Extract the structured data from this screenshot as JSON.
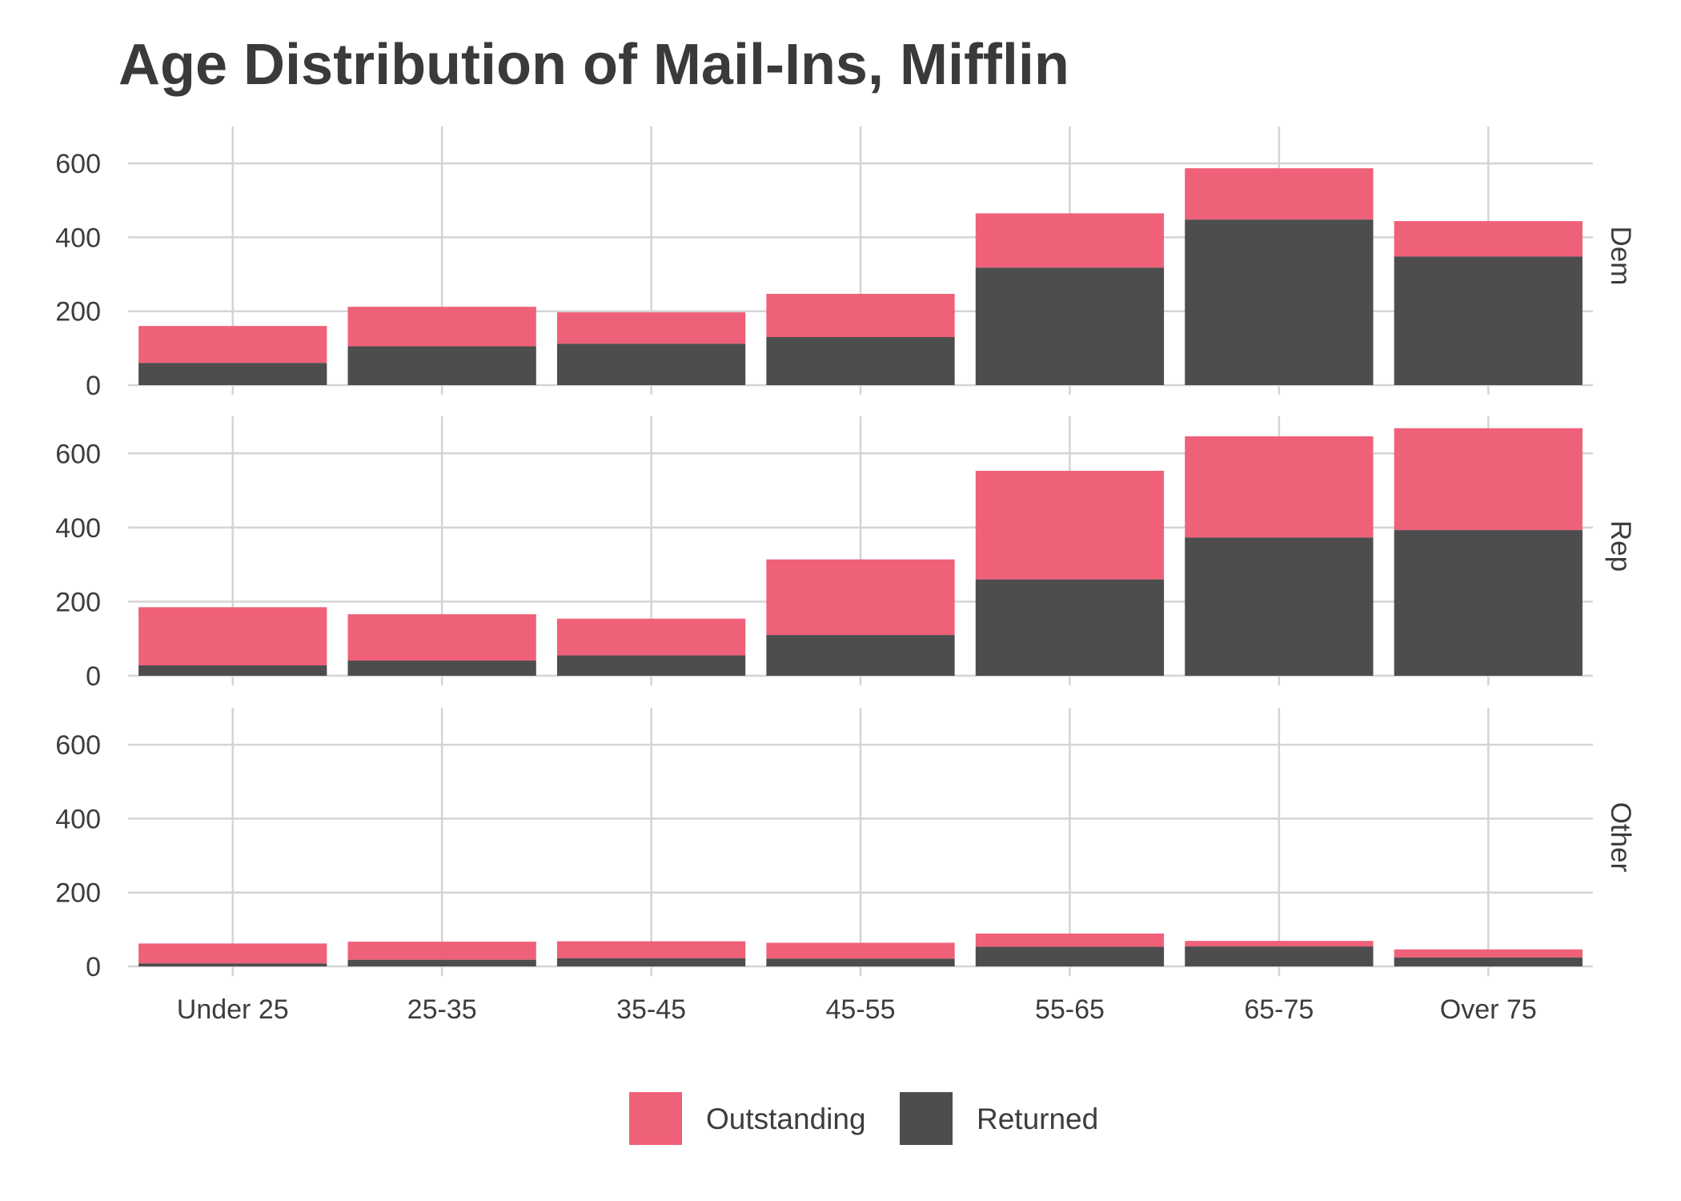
{
  "chart_data": {
    "type": "bar",
    "stacked": true,
    "title": "Age Distribution of Mail-Ins, Mifflin",
    "xlabel": "",
    "ylabel": "",
    "categories": [
      "Under 25",
      "25-35",
      "35-45",
      "45-55",
      "55-65",
      "65-75",
      "Over 75"
    ],
    "ylim": [
      0,
      700
    ],
    "yticks": [
      0,
      200,
      400,
      600
    ],
    "grid": true,
    "legend_position": "bottom",
    "series_names": [
      "Outstanding",
      "Returned"
    ],
    "colors": {
      "Outstanding": "#ef6079",
      "Returned": "#4d4d4d"
    },
    "panels": [
      {
        "name": "Dem",
        "series": [
          {
            "name": "Returned",
            "values": [
              60,
              105,
              112,
              130,
              318,
              448,
              348
            ]
          },
          {
            "name": "Outstanding",
            "values": [
              100,
              107,
              85,
              117,
              147,
              139,
              96
            ]
          }
        ]
      },
      {
        "name": "Rep",
        "series": [
          {
            "name": "Returned",
            "values": [
              28,
              41,
              55,
              110,
              260,
              373,
              393
            ]
          },
          {
            "name": "Outstanding",
            "values": [
              157,
              125,
              99,
              204,
              293,
              273,
              275
            ]
          }
        ]
      },
      {
        "name": "Other",
        "series": [
          {
            "name": "Returned",
            "values": [
              8,
              18,
              22,
              21,
              53,
              54,
              24
            ]
          },
          {
            "name": "Outstanding",
            "values": [
              54,
              49,
              46,
              43,
              36,
              15,
              22
            ]
          }
        ]
      }
    ]
  }
}
